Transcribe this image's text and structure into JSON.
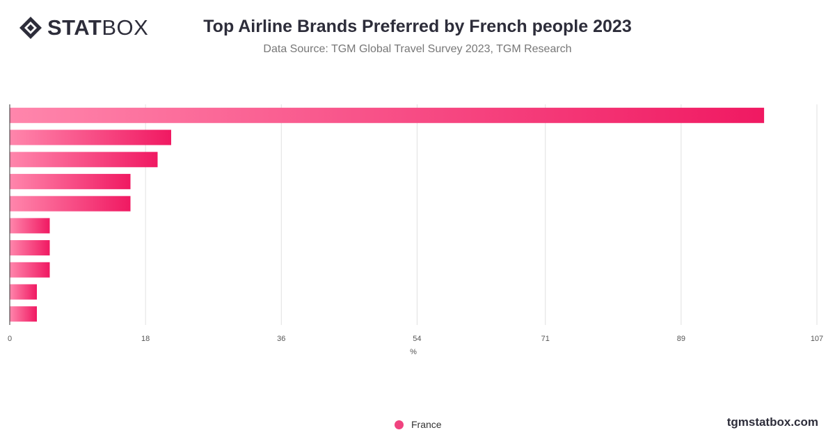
{
  "header": {
    "logo_bold": "STAT",
    "logo_light": "BOX",
    "title": "Top Airline Brands Preferred by French people 2023",
    "subtitle": "Data Source: TGM Global Travel Survey 2023, TGM Research"
  },
  "footer": {
    "url": "tgmstatbox.com"
  },
  "legend": {
    "label": "France",
    "color": "#f0437f"
  },
  "colors": {
    "bar_start": "#ff86ac",
    "bar_end": "#f01962",
    "grid": "#e0e0e0",
    "axis": "#333333"
  },
  "chart_data": {
    "type": "bar",
    "orientation": "horizontal",
    "title": "Top Airline Brands Preferred by French people 2023",
    "xlabel": "%",
    "ylabel": "",
    "xlim": [
      0,
      107
    ],
    "x_ticks": [
      0,
      18,
      36,
      54,
      71,
      89,
      107
    ],
    "categories": [
      "",
      "",
      "",
      "",
      "",
      "",
      "",
      "",
      "",
      ""
    ],
    "series": [
      {
        "name": "France",
        "values": [
          100,
          21.4,
          19.6,
          16,
          16,
          5.3,
          5.3,
          5.3,
          3.6,
          3.6
        ]
      }
    ],
    "grid": true,
    "legend_position": "bottom-center"
  }
}
